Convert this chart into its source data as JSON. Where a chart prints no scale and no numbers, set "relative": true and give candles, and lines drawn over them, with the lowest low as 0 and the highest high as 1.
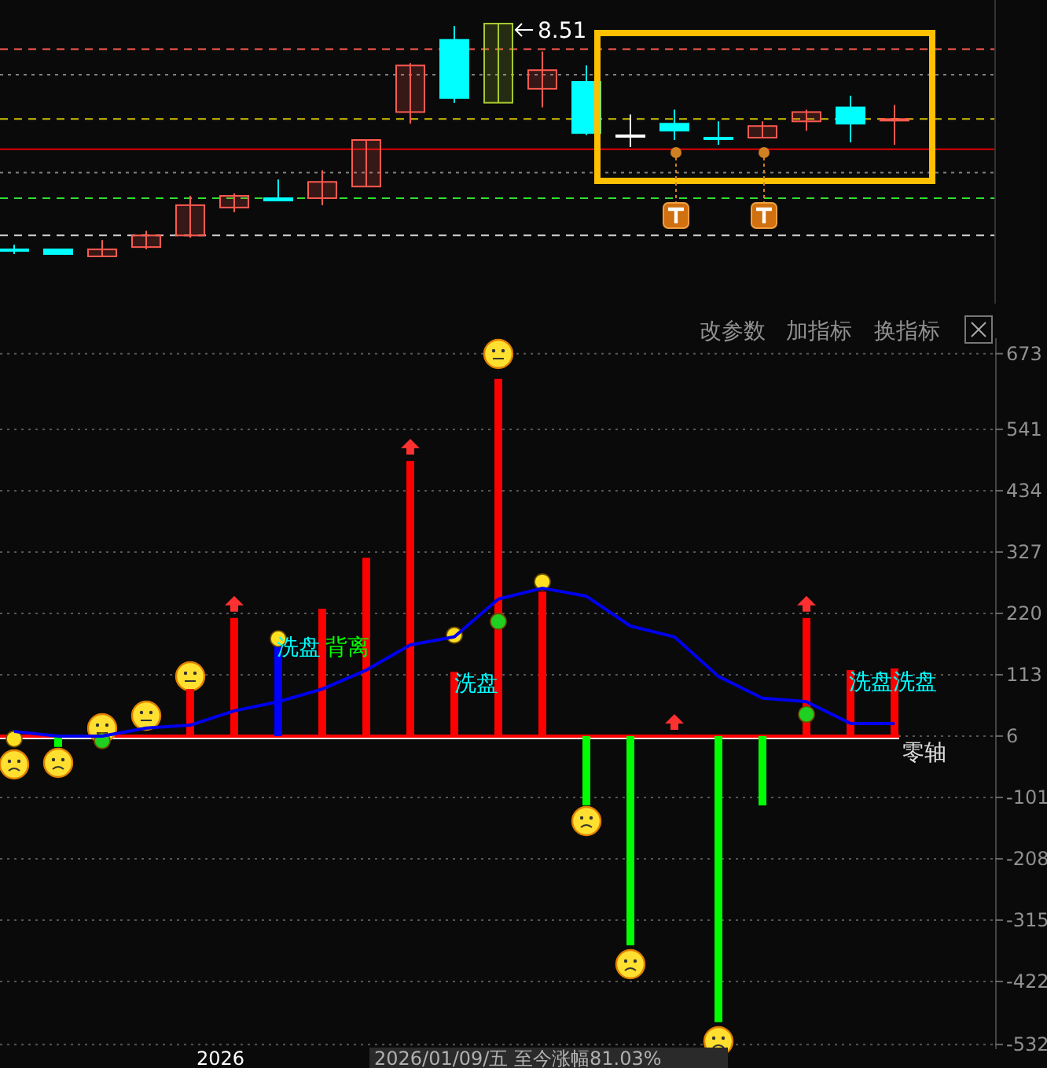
{
  "chart_data": [
    {
      "type": "candlestick",
      "relative": true,
      "categories": [
        null,
        null,
        null,
        null,
        null,
        null,
        null,
        null,
        null,
        null,
        null,
        null,
        null,
        null,
        null,
        null,
        null,
        null,
        null,
        null,
        null
      ],
      "ohlc": [
        [
          0.03,
          0.05,
          0.01,
          0.03
        ],
        [
          0.03,
          0.03,
          0.01,
          0.01
        ],
        [
          0,
          0.07,
          0,
          0.03
        ],
        [
          0.04,
          0.11,
          0.03,
          0.09
        ],
        [
          0.09,
          0.26,
          0.08,
          0.22
        ],
        [
          0.21,
          0.27,
          0.19,
          0.26
        ],
        [
          0.25,
          0.33,
          0.24,
          0.24
        ],
        [
          0.25,
          0.37,
          0.22,
          0.32
        ],
        [
          0.3,
          0.5,
          0.3,
          0.5
        ],
        [
          0.62,
          0.83,
          0.57,
          0.82
        ],
        [
          0.93,
          0.99,
          0.66,
          0.68
        ],
        [
          0.66,
          1,
          0.66,
          1
        ],
        [
          0.72,
          0.88,
          0.64,
          0.8
        ],
        [
          0.75,
          0.82,
          0.52,
          0.53
        ],
        [
          0.52,
          0.61,
          0.47,
          0.52
        ],
        [
          0.57,
          0.63,
          0.5,
          0.54
        ],
        [
          0.51,
          0.58,
          0.48,
          0.51
        ],
        [
          0.51,
          0.58,
          0.51,
          0.56
        ],
        [
          0.58,
          0.63,
          0.54,
          0.62
        ],
        [
          0.64,
          0.69,
          0.49,
          0.57
        ],
        [
          0.59,
          0.65,
          0.48,
          0.59
        ]
      ],
      "colors": [
        "#00ffff",
        "#00ffff",
        "#ff5a50",
        "#ff5a50",
        "#ff5a50",
        "#ff5a50",
        "#00ffff",
        "#ff5a50",
        "#ff5a50",
        "#ff5a50",
        "#00ffff",
        "#a8c830",
        "#ff5a50",
        "#00ffff",
        "#ffffff",
        "#00ffff",
        "#00ffff",
        "#ff5a50",
        "#ff5a50",
        "#00ffff",
        "#ff5a50"
      ],
      "annotations": [
        "8.51"
      ],
      "ref_lines": [
        {
          "axis": "y",
          "value": 0.89,
          "color": "#ff5a50",
          "line_style": "dashed"
        },
        {
          "axis": "y",
          "value": 0.78,
          "color": "#808080",
          "line_style": "dotted"
        },
        {
          "axis": "y",
          "value": 0.59,
          "color": "#d0c000",
          "line_style": "dashed"
        },
        {
          "axis": "y",
          "value": 0.46,
          "color": "#e00000",
          "line_style": "solid"
        },
        {
          "axis": "y",
          "value": 0.36,
          "color": "#808080",
          "line_style": "dotted"
        },
        {
          "axis": "y",
          "value": 0.25,
          "color": "#30e030",
          "line_style": "dashed"
        },
        {
          "axis": "y",
          "value": 0.09,
          "color": "#d0d0d0",
          "line_style": "dashed"
        }
      ]
    },
    {
      "type": "bar",
      "categories": [
        null,
        null,
        null,
        null,
        null,
        null,
        null,
        null,
        null,
        null,
        null,
        null,
        null,
        null,
        null,
        null,
        null,
        null,
        null,
        null,
        null
      ],
      "series": [
        {
          "type": "bar",
          "values": [
            null,
            -13,
            null,
            null,
            88,
            212,
            165,
            228,
            317,
            486,
            118,
            629,
            258,
            -115,
            -359,
            null,
            -493,
            -115,
            212,
            121,
            124
          ],
          "colors": [
            "#ff0000",
            "#00ff00",
            "#ff0000",
            "#ff0000",
            "#ff0000",
            "#ff0000",
            "#0000ff",
            "#ff0000",
            "#ff0000",
            "#ff0000",
            "#ff0000",
            "#ff0000",
            "#ff0000",
            "#00ff00",
            "#00ff00",
            "#ff0000",
            "#00ff00",
            "#00ff00",
            "#ff0000",
            "#ff0000",
            "#ff0000"
          ]
        },
        {
          "type": "line",
          "color": "#0000ee",
          "values": [
            14,
            6,
            6,
            20,
            25,
            50,
            66,
            88,
            121,
            165,
            179,
            245,
            264,
            250,
            198,
            179,
            110,
            72,
            66,
            28,
            28
          ]
        },
        {
          "type": "scatter",
          "color": "#ffe020",
          "marker": "circle",
          "values": [
            1,
            null,
            null,
            null,
            null,
            null,
            176,
            null,
            null,
            null,
            182,
            null,
            275,
            null,
            null,
            null,
            null,
            null,
            null,
            null,
            null
          ]
        },
        {
          "type": "scatter",
          "color": "#20d020",
          "marker": "circle",
          "values": [
            null,
            null,
            -2,
            null,
            null,
            null,
            null,
            null,
            null,
            null,
            null,
            206,
            null,
            null,
            null,
            null,
            null,
            null,
            44,
            null,
            null
          ]
        }
      ],
      "ylim": [
        -540,
        700
      ],
      "yticks": [
        673,
        541,
        434,
        327,
        220,
        113,
        6,
        -101,
        -208,
        -315,
        -422,
        -532
      ],
      "grid": "y",
      "ref_lines": [
        {
          "axis": "y",
          "value": 6,
          "label": "零轴",
          "color": "#ff0000"
        }
      ],
      "annotations": [
        "洗盘",
        "背离",
        "洗盘",
        "洗盘",
        "洗盘",
        "改参数",
        "加指标",
        "换指标",
        "2026",
        "2026/01/09/五 至今涨幅81.03%"
      ]
    }
  ]
}
